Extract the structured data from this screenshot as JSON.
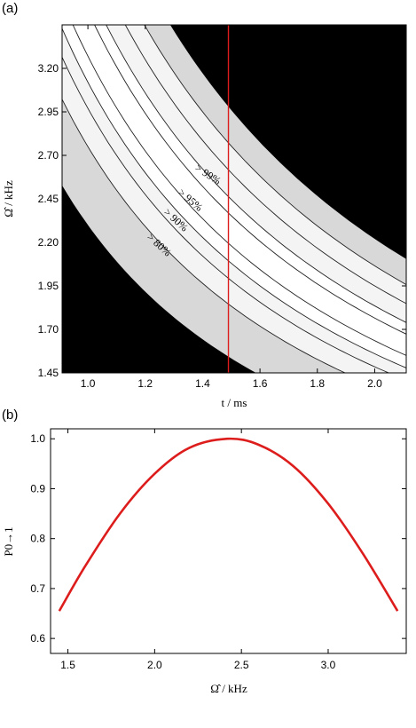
{
  "figure": {
    "panel_a_label": "(a)",
    "panel_b_label": "(b)"
  },
  "chart_data": [
    {
      "type": "heatmap",
      "panel": "(a)",
      "xlabel": "t / ms",
      "ylabel": "Ω̂ / kHz",
      "xlim": [
        0.91,
        2.11
      ],
      "ylim": [
        1.45,
        3.45
      ],
      "x_ticks": [
        "1.0",
        "1.2",
        "1.4",
        "1.6",
        "1.8",
        "2.0"
      ],
      "y_ticks": [
        "1.45",
        "1.70",
        "1.95",
        "2.20",
        "2.45",
        "2.70",
        "2.95",
        "3.20"
      ],
      "x_tick_values": [
        1.0,
        1.2,
        1.4,
        1.6,
        1.8,
        2.0
      ],
      "y_tick_values": [
        1.45,
        1.7,
        1.95,
        2.2,
        2.45,
        2.7,
        2.95,
        3.2
      ],
      "grid": false,
      "region_colors": {
        "below_80": "#000000",
        "80_to_90": "#d8d8d8",
        "90_to_95": "#f4f4f4",
        "above_95": "#ffffff",
        "contour": "#222222"
      },
      "contour_levels": [
        0.8,
        0.9,
        0.95,
        0.99
      ],
      "contour_labels": [
        "> 80%",
        "> 90%",
        "> 95%",
        "> 99%"
      ],
      "marker_line": {
        "x": 1.49,
        "color": "#dd1c1c"
      }
    },
    {
      "type": "line",
      "panel": "(b)",
      "xlabel": "Ω̂ / kHz",
      "ylabel": "P0→1",
      "xlim": [
        1.4,
        3.45
      ],
      "ylim": [
        0.57,
        1.02
      ],
      "x_ticks": [
        "1.5",
        "2.0",
        "2.5",
        "3.0"
      ],
      "y_ticks": [
        "0.6",
        "0.7",
        "0.8",
        "0.9",
        "1.0"
      ],
      "x_tick_values": [
        1.5,
        2.0,
        2.5,
        3.0
      ],
      "y_tick_values": [
        0.6,
        0.7,
        0.8,
        0.9,
        1.0
      ],
      "grid": false,
      "series": [
        {
          "color": "#dd1c1c",
          "x": [
            1.45,
            1.6,
            1.8,
            2.0,
            2.2,
            2.42,
            2.6,
            2.8,
            3.0,
            3.2,
            3.4
          ],
          "y": [
            0.655,
            0.745,
            0.85,
            0.93,
            0.982,
            1.0,
            0.988,
            0.945,
            0.87,
            0.77,
            0.655
          ]
        }
      ]
    }
  ]
}
